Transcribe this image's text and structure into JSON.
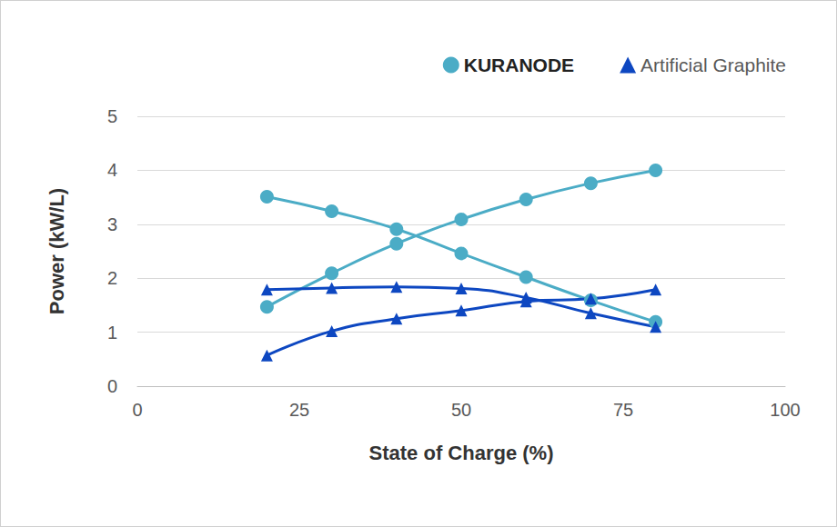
{
  "chart_data": {
    "type": "line",
    "x_label": "State of Charge (%)",
    "y_label": "Power (kW/L)",
    "x": [
      20,
      30,
      40,
      50,
      60,
      70,
      80
    ],
    "series": [
      {
        "name": "KURANODE",
        "color": "#4bacc6",
        "marker": "circle",
        "line_style": "smooth",
        "values": [
          1.47,
          2.09,
          2.64,
          3.09,
          3.46,
          3.76,
          4.0
        ]
      },
      {
        "name": "KURANODE",
        "color": "#4bacc6",
        "marker": "circle",
        "line_style": "smooth",
        "values": [
          3.51,
          3.24,
          2.91,
          2.46,
          2.02,
          1.59,
          1.19
        ]
      },
      {
        "name": "Artificial Graphite",
        "color": "#0d47c1",
        "marker": "triangle",
        "line_style": "smooth",
        "values": [
          1.79,
          1.82,
          1.84,
          1.81,
          1.64,
          1.35,
          1.1
        ]
      },
      {
        "name": "Artificial Graphite",
        "color": "#0d47c1",
        "marker": "triangle",
        "line_style": "smooth",
        "values": [
          0.57,
          1.02,
          1.25,
          1.4,
          1.57,
          1.62,
          1.79
        ]
      }
    ],
    "xlim": [
      0,
      100
    ],
    "xticks": [
      0,
      25,
      50,
      75,
      100
    ],
    "ylim": [
      0,
      5
    ],
    "yticks": [
      0,
      1,
      2,
      3,
      4,
      5
    ],
    "grid": true,
    "legend": "top-right"
  }
}
